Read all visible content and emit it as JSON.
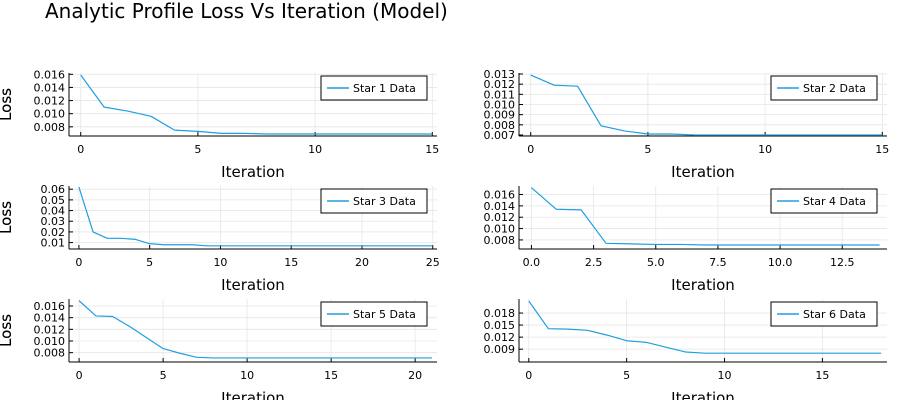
{
  "figure": {
    "title": "Analytic Profile Loss Vs Iteration (Model)",
    "line_color": "#1f9fe0",
    "grid_color": "#e6e6e6"
  },
  "chart_data": [
    {
      "type": "line",
      "title": "",
      "xlabel": "Iteration",
      "ylabel": "Loss",
      "legend_position": "top-right",
      "grid": true,
      "xlim": [
        -0.5,
        15.2
      ],
      "ylim": [
        0.0066,
        0.0162
      ],
      "xticks": [
        0,
        5,
        10,
        15
      ],
      "xtick_labels": [
        "0",
        "5",
        "10",
        "15"
      ],
      "yticks": [
        0.008,
        0.01,
        0.012,
        0.014,
        0.016
      ],
      "ytick_labels": [
        "0.008",
        "0.010",
        "0.012",
        "0.014",
        "0.016"
      ],
      "series": [
        {
          "name": "Star 1 Data",
          "x": [
            0,
            1,
            2,
            3,
            4,
            5,
            6,
            7,
            8,
            9,
            10,
            11,
            12,
            13,
            14,
            15
          ],
          "y": [
            0.0159,
            0.011,
            0.0104,
            0.0096,
            0.0075,
            0.0073,
            0.007,
            0.007,
            0.0069,
            0.0069,
            0.0069,
            0.0069,
            0.0069,
            0.0069,
            0.0069,
            0.0069
          ]
        }
      ]
    },
    {
      "type": "line",
      "title": "",
      "xlabel": "Iteration",
      "ylabel": "Loss",
      "legend_position": "top-right",
      "grid": true,
      "xlim": [
        -0.5,
        15.2
      ],
      "ylim": [
        0.0069,
        0.0131
      ],
      "xticks": [
        0,
        5,
        10,
        15
      ],
      "xtick_labels": [
        "0",
        "5",
        "10",
        "15"
      ],
      "yticks": [
        0.007,
        0.008,
        0.009,
        0.01,
        0.011,
        0.012,
        0.013
      ],
      "ytick_labels": [
        "0.007",
        "0.008",
        "0.009",
        "0.010",
        "0.011",
        "0.012",
        "0.013"
      ],
      "series": [
        {
          "name": "Star 2 Data",
          "x": [
            0,
            1,
            2,
            3,
            4,
            5,
            6,
            7,
            8,
            9,
            10,
            11,
            12,
            13,
            14,
            15
          ],
          "y": [
            0.0129,
            0.0119,
            0.0118,
            0.0079,
            0.0074,
            0.0071,
            0.0071,
            0.007,
            0.007,
            0.007,
            0.007,
            0.007,
            0.007,
            0.007,
            0.007,
            0.007
          ]
        }
      ]
    },
    {
      "type": "line",
      "title": "",
      "xlabel": "Iteration",
      "ylabel": "Loss",
      "legend_position": "top-right",
      "grid": true,
      "xlim": [
        -0.7,
        25.3
      ],
      "ylim": [
        0.004,
        0.063
      ],
      "xticks": [
        0,
        5,
        10,
        15,
        20,
        25
      ],
      "xtick_labels": [
        "0",
        "5",
        "10",
        "15",
        "20",
        "25"
      ],
      "yticks": [
        0.01,
        0.02,
        0.03,
        0.04,
        0.05,
        0.06
      ],
      "ytick_labels": [
        "0.01",
        "0.02",
        "0.03",
        "0.04",
        "0.05",
        "0.06"
      ],
      "series": [
        {
          "name": "Star 3 Data",
          "x": [
            0,
            1,
            2,
            3,
            4,
            5,
            6,
            7,
            8,
            9,
            10,
            11,
            12,
            13,
            14,
            15,
            16,
            17,
            18,
            19,
            20,
            21,
            22,
            23,
            24,
            25
          ],
          "y": [
            0.062,
            0.02,
            0.014,
            0.014,
            0.013,
            0.009,
            0.008,
            0.008,
            0.008,
            0.007,
            0.007,
            0.007,
            0.007,
            0.007,
            0.007,
            0.007,
            0.007,
            0.007,
            0.007,
            0.007,
            0.007,
            0.007,
            0.007,
            0.007,
            0.007,
            0.007
          ]
        }
      ]
    },
    {
      "type": "line",
      "title": "",
      "xlabel": "Iteration",
      "ylabel": "Loss",
      "legend_position": "top-right",
      "grid": true,
      "xlim": [
        -0.5,
        14.3
      ],
      "ylim": [
        0.0064,
        0.0175
      ],
      "xticks": [
        0,
        2.5,
        5,
        7.5,
        10,
        12.5
      ],
      "xtick_labels": [
        "0.0",
        "2.5",
        "5.0",
        "7.5",
        "10.0",
        "12.5"
      ],
      "yticks": [
        0.008,
        0.01,
        0.012,
        0.014,
        0.016
      ],
      "ytick_labels": [
        "0.008",
        "0.010",
        "0.012",
        "0.014",
        "0.016"
      ],
      "series": [
        {
          "name": "Star 4 Data",
          "x": [
            0,
            1,
            2,
            3,
            4,
            5,
            6,
            7,
            8,
            9,
            10,
            11,
            12,
            13,
            14
          ],
          "y": [
            0.0172,
            0.0134,
            0.0133,
            0.0074,
            0.0073,
            0.0072,
            0.0072,
            0.0071,
            0.0071,
            0.0071,
            0.0071,
            0.0071,
            0.0071,
            0.0071,
            0.0071
          ]
        }
      ]
    },
    {
      "type": "line",
      "title": "",
      "xlabel": "Iteration",
      "ylabel": "Loss",
      "legend_position": "top-right",
      "grid": true,
      "xlim": [
        -0.6,
        21.3
      ],
      "ylim": [
        0.0064,
        0.0172
      ],
      "xticks": [
        0,
        5,
        10,
        15,
        20
      ],
      "xtick_labels": [
        "0",
        "5",
        "10",
        "15",
        "20"
      ],
      "yticks": [
        0.008,
        0.01,
        0.012,
        0.014,
        0.016
      ],
      "ytick_labels": [
        "0.008",
        "0.010",
        "0.012",
        "0.014",
        "0.016"
      ],
      "series": [
        {
          "name": "Star 5 Data",
          "x": [
            0,
            1,
            2,
            3,
            4,
            5,
            6,
            7,
            8,
            9,
            10,
            11,
            12,
            13,
            14,
            15,
            16,
            17,
            18,
            19,
            20,
            21
          ],
          "y": [
            0.0169,
            0.0143,
            0.0142,
            0.0125,
            0.0106,
            0.0087,
            0.0079,
            0.0072,
            0.0071,
            0.0071,
            0.0071,
            0.0071,
            0.0071,
            0.0071,
            0.0071,
            0.0071,
            0.0071,
            0.0071,
            0.0071,
            0.0071,
            0.0071,
            0.0071
          ]
        }
      ]
    },
    {
      "type": "line",
      "title": "",
      "xlabel": "Iteration",
      "ylabel": "Loss",
      "legend_position": "top-right",
      "grid": true,
      "xlim": [
        -0.5,
        18.3
      ],
      "ylim": [
        0.0058,
        0.0215
      ],
      "xticks": [
        0,
        5,
        10,
        15
      ],
      "xtick_labels": [
        "0",
        "5",
        "10",
        "15"
      ],
      "yticks": [
        0.009,
        0.012,
        0.015,
        0.018
      ],
      "ytick_labels": [
        "0.009",
        "0.012",
        "0.015",
        "0.018"
      ],
      "series": [
        {
          "name": "Star 6 Data",
          "x": [
            0,
            1,
            2,
            3,
            4,
            5,
            6,
            7,
            8,
            9,
            10,
            11,
            12,
            13,
            14,
            15,
            16,
            17,
            18
          ],
          "y": [
            0.021,
            0.0141,
            0.014,
            0.0137,
            0.0125,
            0.0111,
            0.0107,
            0.0095,
            0.0083,
            0.008,
            0.008,
            0.008,
            0.008,
            0.008,
            0.008,
            0.008,
            0.008,
            0.008,
            0.008
          ]
        }
      ]
    }
  ]
}
